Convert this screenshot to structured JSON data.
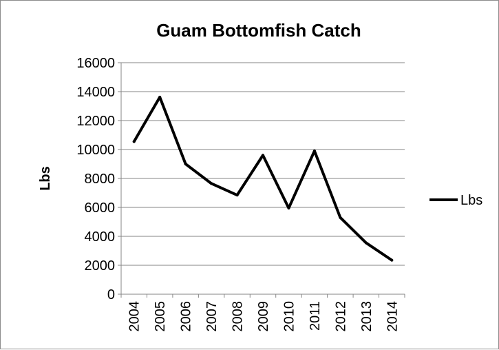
{
  "chart_data": {
    "type": "line",
    "title": "Guam Bottomfish Catch",
    "xlabel": "",
    "ylabel": "Lbs",
    "categories": [
      "2004",
      "2005",
      "2006",
      "2007",
      "2008",
      "2009",
      "2010",
      "2011",
      "2012",
      "2013",
      "2014"
    ],
    "series": [
      {
        "name": "Lbs",
        "values": [
          10550,
          13620,
          9000,
          7650,
          6850,
          9600,
          5950,
          9900,
          5300,
          3550,
          2350
        ],
        "color": "#000000"
      }
    ],
    "ylim": [
      0,
      16000
    ],
    "yticks": [
      "0",
      "2000",
      "4000",
      "6000",
      "8000",
      "10000",
      "12000",
      "14000",
      "16000"
    ],
    "grid": true,
    "legend_position": "right"
  }
}
